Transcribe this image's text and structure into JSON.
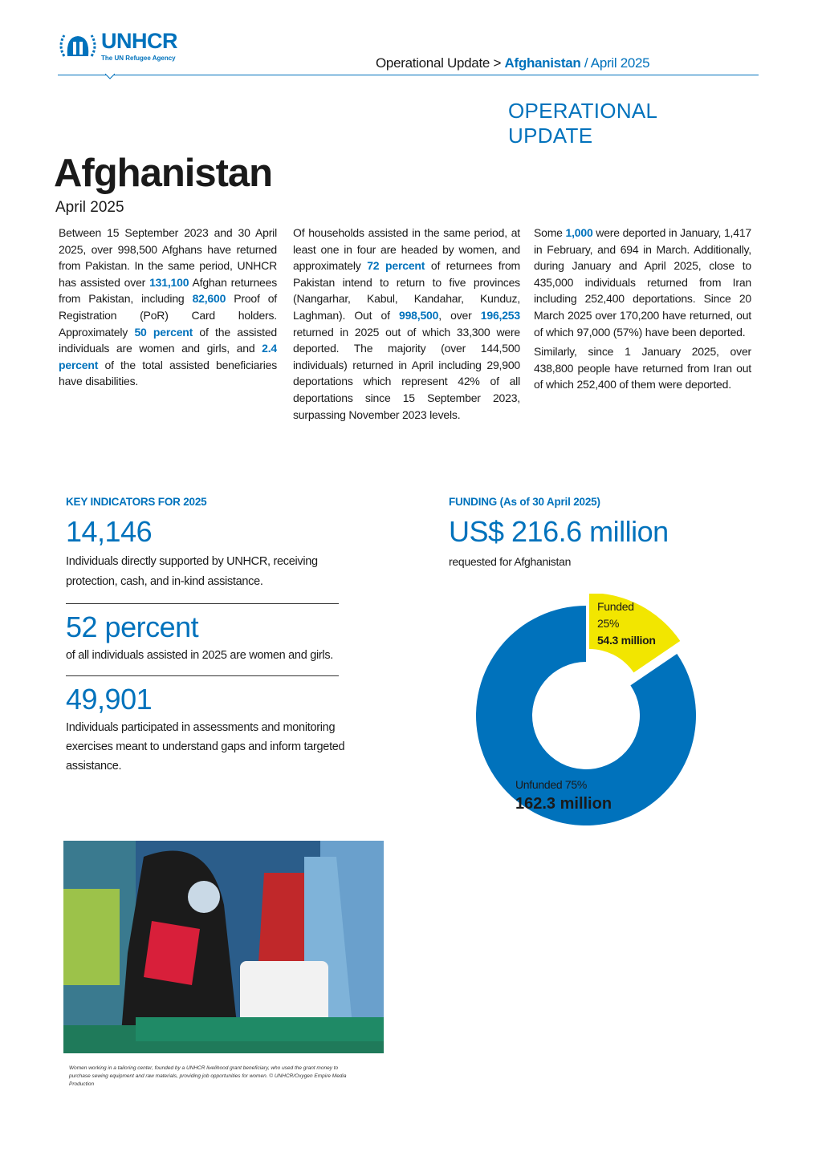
{
  "header": {
    "logo_text": "UNHCR",
    "logo_tagline": "The UN Refugee Agency",
    "breadcrumb_prefix": "Operational Update > ",
    "breadcrumb_country": "Afghanistan",
    "breadcrumb_suffix": " / April 2025"
  },
  "doc": {
    "label_line1": "OPERATIONAL",
    "label_line2": "UPDATE",
    "title": "Afghanistan",
    "date": "April 2025"
  },
  "col1": [
    "Between 15 September 2023 and 30 April 2025, over 998,500 Afghans have returned from Pakistan. In the same period, UNHCR has assisted over ",
    "131,100",
    " Afghan returnees from Pakistan, including ",
    "82,600",
    " Proof of Registration (PoR) Card holders. Approximately ",
    "50 percent",
    " of the assisted individuals are women and girls, and ",
    "2.4 percent",
    " of the total assisted beneficiaries have disabilities."
  ],
  "col2": [
    "Of households assisted in the same period, at least one in four are headed by women, and approximately ",
    "72 percent",
    " of returnees from Pakistan intend to return to five provinces (Nangarhar, Kabul, Kandahar, Kunduz, Laghman). Out of ",
    "998,500",
    ", over ",
    "196,253",
    " returned in 2025 out of which 33,300 were deported. The majority (over 144,500 individuals) returned in April including 29,900 deportations which represent 42% of all deportations since 15 September 2023, surpassing November 2023 levels."
  ],
  "col3a": [
    "Some ",
    "1,000",
    " were deported in January, 1,417 in February, and 694 in March. Additionally, during January and April 2025, close to 435,000 individuals returned from Iran including 252,400 deportations. Since 20 March 2025 over 170,200 have returned, out of which 97,000 (57%) have been deported."
  ],
  "col3b": "Similarly, since 1 January 2025, over 438,800 people have returned from Iran out of which 252,400 of them were deported.",
  "indicators": {
    "heading": "KEY INDICATORS FOR 2025",
    "items": [
      {
        "value": "14,146",
        "desc": "Individuals directly supported by UNHCR, receiving protection, cash, and in-kind assistance."
      },
      {
        "value": "52 percent",
        "desc": "of all individuals assisted in 2025 are women and girls."
      },
      {
        "value": "49,901",
        "desc": "Individuals participated in assessments and monitoring exercises meant to understand gaps and inform targeted assistance."
      }
    ]
  },
  "funding": {
    "heading": "FUNDING (As of 30 April 2025)",
    "amount": "US$ 216.6 million",
    "sub": "requested for Afghanistan",
    "funded_label": "Funded",
    "funded_pct": "25%",
    "funded_amount": "54.3 million",
    "unfunded_label": "Unfunded 75%",
    "unfunded_amount": "162.3 million",
    "funded_share": 25,
    "colors": {
      "funded": "#f2e600",
      "unfunded": "#0072bc"
    }
  },
  "photo": {
    "caption": "Women working in a tailoring center, founded by a UNHCR livelihood grant beneficiary, who used the grant money to purchase sewing equipment and raw materials, providing job opportunities for women. © UNHCR/Oxygen Empire Media Production"
  }
}
